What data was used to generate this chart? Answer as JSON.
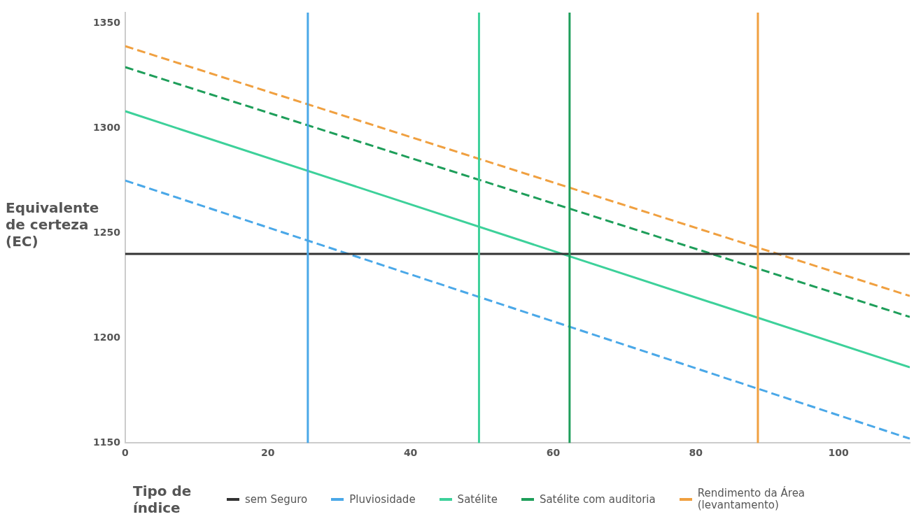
{
  "chart_data": {
    "type": "line",
    "ylabel": "Equivalente de certeza (EC)",
    "legend_title": "Tipo de índice",
    "legend": "bottom",
    "grid": false,
    "marker": "none",
    "xlim": [
      0,
      110
    ],
    "xticks": [
      0,
      20,
      40,
      60,
      80,
      100
    ],
    "ylim": [
      1150,
      1355
    ],
    "yticks": [
      1150,
      1200,
      1250,
      1300,
      1350
    ],
    "x": [
      0,
      110
    ],
    "series": [
      {
        "name": "sem Seguro",
        "color": "#333333",
        "values": [
          1240,
          1240
        ],
        "line_style": "solid"
      },
      {
        "name": "Pluviosidade",
        "color": "#4aa8e8",
        "values": [
          1275,
          1152
        ],
        "line_style": "dashed"
      },
      {
        "name": "Satélite",
        "color": "#3dd19a",
        "values": [
          1308,
          1186
        ],
        "line_style": "solid"
      },
      {
        "name": "Satélite com auditoria",
        "color": "#1e9e5a",
        "values": [
          1329,
          1210
        ],
        "line_style": "dashed"
      },
      {
        "name": "Rendimento da Área (levantamento)",
        "color": "#f0a040",
        "values": [
          1339,
          1220
        ],
        "line_style": "dashed"
      }
    ],
    "ref_lines": [
      {
        "axis": "x",
        "value": 25.6,
        "color": "#4aa8e8"
      },
      {
        "axis": "x",
        "value": 49.6,
        "color": "#3dd19a"
      },
      {
        "axis": "x",
        "value": 62.3,
        "color": "#1e9e5a"
      },
      {
        "axis": "x",
        "value": 88.7,
        "color": "#f0a040"
      }
    ]
  }
}
